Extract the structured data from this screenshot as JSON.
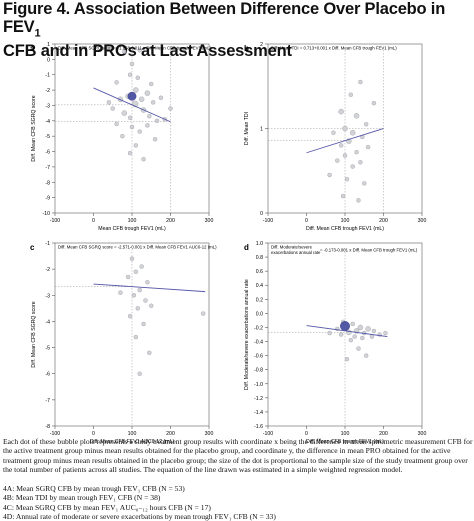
{
  "figure": {
    "title_main": "Figure 4. Association Between Difference Over Placebo in FEV",
    "title_sub": "1",
    "title_line2": "CFB and in PROs at Last Assessment"
  },
  "caption": "Each dot of these bubble plots represents a study treatment group results with coordinate x being the difference in mean spirometric measurement CFB for the active treatment group minus mean results obtained for the placebo group, and coordinate y, the difference in mean PRO obtained for the active treatment group minus mean results obtained in the placebo group; the size of the dot is proportional to the sample size of the study treatment group over the total number of patients across all studies. The equation of the line drawn was estimated in a simple weighted regression model.",
  "footnotes": [
    "4A: Mean SGRQ CFB by mean trough FEV₁ CFB (N = 53)",
    "4B: Mean TDI by mean trough FEV₁ CFB (N = 38)",
    "4C: Mean SGRQ CFB by mean FEV₁ AUC₀₋₁₂ hours CFB (N = 17)",
    "4D: Annual rate of moderate or severe exacerbations by mean trough FEV₁ CFB (N = 33)"
  ],
  "chart_data": [
    {
      "id": "a",
      "type": "scatter",
      "panel_label": "a",
      "xlabel": "Mean CFB trough FEV1 (mL)",
      "ylabel": "Diff. Mean CFB SGRQ score",
      "equation": "Diff. Mean CFB SGRQ score = -1.858-0.011 x Diff. Mean CFB trough FEV1 (mL)",
      "xlim": [
        -100,
        300
      ],
      "ylim": [
        -10,
        1
      ],
      "xticks": [
        -100,
        0,
        100,
        200,
        300
      ],
      "yticks": [
        1,
        0,
        -1,
        -2,
        -3,
        -4,
        -5,
        -6,
        -7,
        -8,
        -9,
        -10
      ],
      "line": {
        "x": [
          0,
          200
        ],
        "y": [
          -1.86,
          -4.06
        ]
      },
      "ref_x": [
        100,
        200
      ],
      "ref_y": [
        -2.96,
        -4.06
      ],
      "points": [
        {
          "x": 80,
          "y": 0.5,
          "s": 2
        },
        {
          "x": 100,
          "y": -0.3,
          "s": 2
        },
        {
          "x": 120,
          "y": 0.6,
          "s": 2
        },
        {
          "x": 95,
          "y": -1.0,
          "s": 2
        },
        {
          "x": 60,
          "y": -1.5,
          "s": 2
        },
        {
          "x": 115,
          "y": -1.2,
          "s": 2
        },
        {
          "x": 150,
          "y": -1.6,
          "s": 2
        },
        {
          "x": 140,
          "y": -2.2,
          "s": 3
        },
        {
          "x": 110,
          "y": -2.0,
          "s": 3
        },
        {
          "x": 90,
          "y": -2.4,
          "s": 3
        },
        {
          "x": 70,
          "y": -2.6,
          "s": 3
        },
        {
          "x": 125,
          "y": -2.6,
          "s": 3
        },
        {
          "x": 155,
          "y": -2.8,
          "s": 2
        },
        {
          "x": 175,
          "y": -2.5,
          "s": 2
        },
        {
          "x": 100,
          "y": -2.4,
          "s": 6
        },
        {
          "x": 108,
          "y": -2.9,
          "s": 4
        },
        {
          "x": 50,
          "y": -3.2,
          "s": 2
        },
        {
          "x": 80,
          "y": -3.5,
          "s": 3
        },
        {
          "x": 95,
          "y": -3.8,
          "s": 2
        },
        {
          "x": 130,
          "y": -3.3,
          "s": 3
        },
        {
          "x": 145,
          "y": -3.7,
          "s": 2
        },
        {
          "x": 165,
          "y": -4.0,
          "s": 2
        },
        {
          "x": 185,
          "y": -3.9,
          "s": 2
        },
        {
          "x": 60,
          "y": -4.2,
          "s": 2
        },
        {
          "x": 100,
          "y": -4.4,
          "s": 2
        },
        {
          "x": 120,
          "y": -4.7,
          "s": 2
        },
        {
          "x": 140,
          "y": -4.3,
          "s": 2
        },
        {
          "x": 75,
          "y": -5.0,
          "s": 2
        },
        {
          "x": 160,
          "y": -5.2,
          "s": 2
        },
        {
          "x": 110,
          "y": -5.6,
          "s": 2
        },
        {
          "x": 95,
          "y": -6.1,
          "s": 2
        },
        {
          "x": 130,
          "y": -6.5,
          "s": 2
        },
        {
          "x": 40,
          "y": -2.8,
          "s": 2
        },
        {
          "x": 200,
          "y": -3.2,
          "s": 2
        }
      ]
    },
    {
      "id": "b",
      "type": "scatter",
      "panel_label": "b",
      "xlabel": "Diff. Mean CFB trough FEV1 (mL)",
      "ylabel": "Diff. Mean TDI",
      "equation": "Diff. Mean TDI = 0.713+0.001 x Diff. Mean CFB trough FEV1 (mL)",
      "xlim": [
        -100,
        300
      ],
      "ylim": [
        0,
        2
      ],
      "xticks": [
        -100,
        0,
        100,
        200,
        300
      ],
      "yticks": [
        2,
        1,
        0
      ],
      "line": {
        "x": [
          0,
          200
        ],
        "y": [
          0.713,
          1.0
        ]
      },
      "ref_x": [
        100,
        200
      ],
      "ref_y": [
        0.86,
        1.0
      ],
      "points": [
        {
          "x": 140,
          "y": 1.55,
          "s": 2
        },
        {
          "x": 115,
          "y": 1.4,
          "s": 2
        },
        {
          "x": 175,
          "y": 1.3,
          "s": 2
        },
        {
          "x": 90,
          "y": 1.2,
          "s": 3
        },
        {
          "x": 130,
          "y": 1.15,
          "s": 3
        },
        {
          "x": 155,
          "y": 1.05,
          "s": 2
        },
        {
          "x": 100,
          "y": 1.0,
          "s": 3
        },
        {
          "x": 120,
          "y": 0.95,
          "s": 3
        },
        {
          "x": 70,
          "y": 0.95,
          "s": 2
        },
        {
          "x": 145,
          "y": 0.9,
          "s": 2
        },
        {
          "x": 110,
          "y": 0.85,
          "s": 3
        },
        {
          "x": 90,
          "y": 0.8,
          "s": 2
        },
        {
          "x": 160,
          "y": 0.78,
          "s": 2
        },
        {
          "x": 130,
          "y": 0.72,
          "s": 2
        },
        {
          "x": 100,
          "y": 0.68,
          "s": 2
        },
        {
          "x": 80,
          "y": 0.62,
          "s": 2
        },
        {
          "x": 140,
          "y": 0.6,
          "s": 2
        },
        {
          "x": 120,
          "y": 0.55,
          "s": 2
        },
        {
          "x": 60,
          "y": 0.45,
          "s": 2
        },
        {
          "x": 105,
          "y": 0.4,
          "s": 2
        },
        {
          "x": 150,
          "y": 0.35,
          "s": 2
        },
        {
          "x": 95,
          "y": 0.2,
          "s": 2
        },
        {
          "x": 135,
          "y": 0.15,
          "s": 2
        }
      ]
    },
    {
      "id": "c",
      "type": "scatter",
      "panel_label": "c",
      "xlabel": "Diff. Mean CFB FEV1 AUC0-12 (mL)",
      "ylabel": "Diff. Mean CFB SGRQ score",
      "equation": "Diff. Mean CFB SGRQ score = -2.571-0.001 x Diff. Mean CFB FEV1 AUC0-12 (mL)",
      "xlim": [
        -100,
        300
      ],
      "ylim": [
        -8,
        -1
      ],
      "xticks": [
        -100,
        0,
        100,
        200,
        300
      ],
      "yticks": [
        -1,
        -2,
        -3,
        -4,
        -5,
        -6,
        -7,
        -8
      ],
      "line": {
        "x": [
          0,
          290
        ],
        "y": [
          -2.57,
          -2.86
        ]
      },
      "ref_x": [
        100
      ],
      "ref_y": [
        -2.67
      ],
      "points": [
        {
          "x": 100,
          "y": -1.6,
          "s": 2
        },
        {
          "x": 125,
          "y": -1.9,
          "s": 2
        },
        {
          "x": 110,
          "y": -2.1,
          "s": 2
        },
        {
          "x": 90,
          "y": -2.3,
          "s": 2
        },
        {
          "x": 140,
          "y": -2.5,
          "s": 2
        },
        {
          "x": 120,
          "y": -2.8,
          "s": 2
        },
        {
          "x": 105,
          "y": -3.0,
          "s": 2
        },
        {
          "x": 135,
          "y": -3.2,
          "s": 2
        },
        {
          "x": 115,
          "y": -3.5,
          "s": 2
        },
        {
          "x": 150,
          "y": -3.4,
          "s": 2
        },
        {
          "x": 95,
          "y": -3.8,
          "s": 2
        },
        {
          "x": 130,
          "y": -4.1,
          "s": 2
        },
        {
          "x": 110,
          "y": -4.6,
          "s": 2
        },
        {
          "x": 145,
          "y": -5.2,
          "s": 2
        },
        {
          "x": 120,
          "y": -6.0,
          "s": 2
        },
        {
          "x": 285,
          "y": -3.7,
          "s": 2
        },
        {
          "x": 70,
          "y": -2.9,
          "s": 2
        }
      ]
    },
    {
      "id": "d",
      "type": "scatter",
      "panel_label": "d",
      "xlabel": "Diff. Mean CFB trough FEV1 (mL)",
      "ylabel": "Diff. Moderate/severe exacerbations annual rate",
      "equation_line1": "Diff. Moderate/severe",
      "equation_line2": "exacerbations annual rate",
      "equation_line3": "= -0.173-0.001 x Diff. Mean CFB trough FEV1 (mL)",
      "xlim": [
        -100,
        300
      ],
      "ylim": [
        -1.6,
        1.0
      ],
      "xticks": [
        -100,
        0,
        100,
        200,
        300
      ],
      "yticks": [
        1.0,
        0.8,
        0.6,
        0.4,
        0.2,
        0.0,
        -0.2,
        -0.4,
        -0.6,
        -0.8,
        -1.0,
        -1.2,
        -1.4,
        -1.6
      ],
      "line": {
        "x": [
          0,
          210
        ],
        "y": [
          -0.173,
          -0.33
        ]
      },
      "ref_x": [
        100
      ],
      "ref_y": [
        -0.27
      ],
      "points": [
        {
          "x": 95,
          "y": -0.12,
          "s": 2
        },
        {
          "x": 100,
          "y": -0.18,
          "s": 7
        },
        {
          "x": 120,
          "y": -0.15,
          "s": 2
        },
        {
          "x": 140,
          "y": -0.2,
          "s": 3
        },
        {
          "x": 160,
          "y": -0.22,
          "s": 3
        },
        {
          "x": 80,
          "y": -0.22,
          "s": 2
        },
        {
          "x": 130,
          "y": -0.25,
          "s": 3
        },
        {
          "x": 110,
          "y": -0.27,
          "s": 3
        },
        {
          "x": 150,
          "y": -0.28,
          "s": 2
        },
        {
          "x": 175,
          "y": -0.25,
          "s": 2
        },
        {
          "x": 190,
          "y": -0.3,
          "s": 2
        },
        {
          "x": 205,
          "y": -0.28,
          "s": 2
        },
        {
          "x": 90,
          "y": -0.3,
          "s": 2
        },
        {
          "x": 125,
          "y": -0.33,
          "s": 2
        },
        {
          "x": 145,
          "y": -0.35,
          "s": 2
        },
        {
          "x": 170,
          "y": -0.33,
          "s": 2
        },
        {
          "x": 60,
          "y": -0.28,
          "s": 2
        },
        {
          "x": 115,
          "y": -0.38,
          "s": 2
        },
        {
          "x": 135,
          "y": -0.5,
          "s": 2
        },
        {
          "x": 155,
          "y": -0.6,
          "s": 2
        },
        {
          "x": 105,
          "y": -0.65,
          "s": 2
        }
      ]
    }
  ]
}
